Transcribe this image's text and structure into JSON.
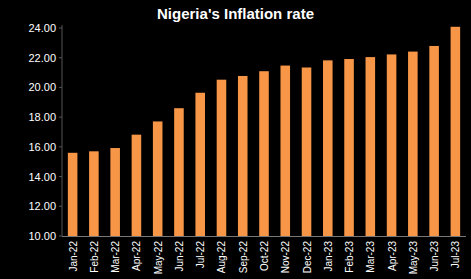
{
  "chart_data": {
    "type": "bar",
    "title": "Nigeria's Inflation rate",
    "categories": [
      "Jan-22",
      "Feb-22",
      "Mar-22",
      "Apr-22",
      "May-22",
      "Jun-22",
      "Jul-22",
      "Aug-22",
      "Sep-22",
      "Oct-22",
      "Nov-22",
      "Dec-22",
      "Jan-23",
      "Feb-23",
      "Mar-23",
      "Apr-23",
      "May-23",
      "Jun-23",
      "Jul-23"
    ],
    "values": [
      15.6,
      15.7,
      15.92,
      16.82,
      17.71,
      18.6,
      19.64,
      20.52,
      20.77,
      21.09,
      21.47,
      21.34,
      21.82,
      21.91,
      22.04,
      22.22,
      22.41,
      22.79,
      24.08
    ],
    "color": "#f79646",
    "ylim": [
      10,
      24.2
    ],
    "yticks": [
      {
        "value": 10,
        "label": "10.00"
      },
      {
        "value": 12,
        "label": "12.00"
      },
      {
        "value": 14,
        "label": "14.00"
      },
      {
        "value": 16,
        "label": "16.00"
      },
      {
        "value": 18,
        "label": "18.00"
      },
      {
        "value": 20,
        "label": "20.00"
      },
      {
        "value": 22,
        "label": "22.00"
      },
      {
        "value": 24,
        "label": "24.00"
      }
    ],
    "grid": false
  }
}
